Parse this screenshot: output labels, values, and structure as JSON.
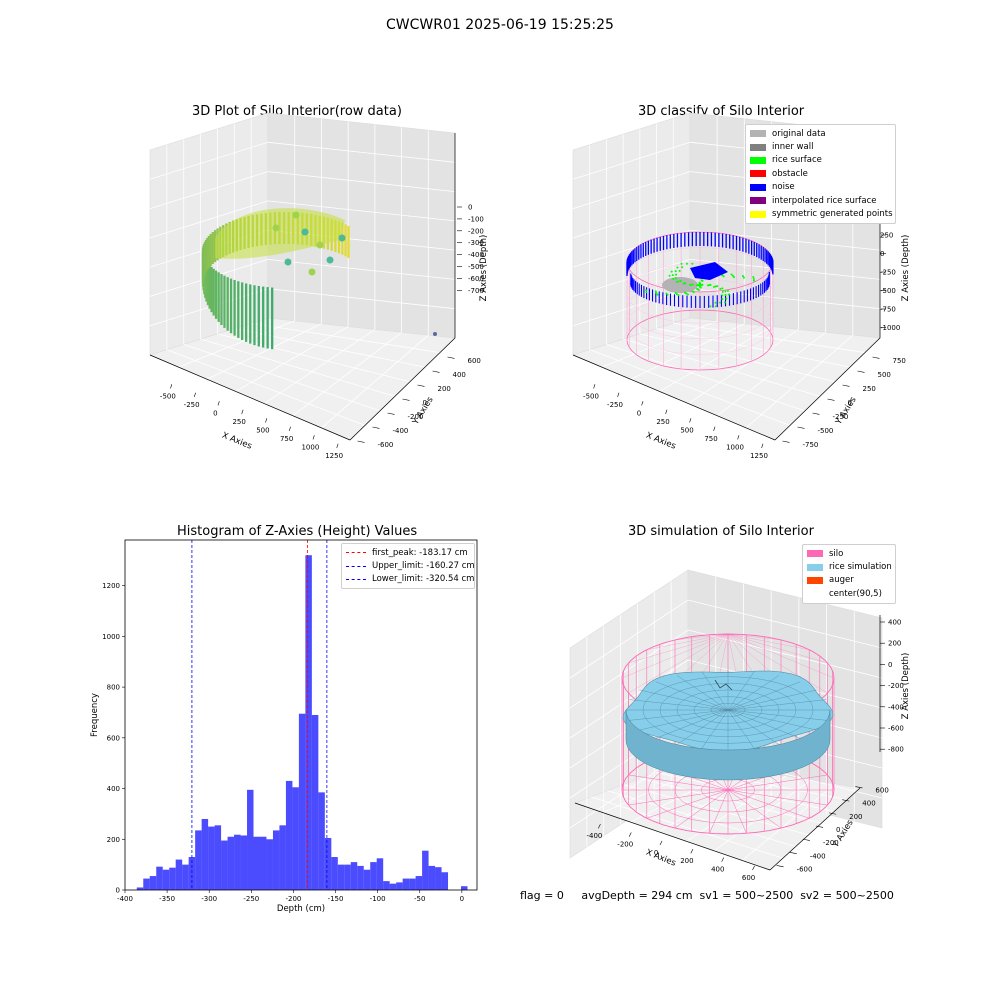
{
  "suptitle": "CWCWR01 2025-06-19 15:25:25",
  "footer": "flag = 0     avgDepth = 294 cm  sv1 = 500~2500  sv2 = 500~2500",
  "chart_data": [
    {
      "type": "scatter",
      "title": "3D Plot of Silo Interior(row data)",
      "xlabel": "X Axies",
      "ylabel": "Y Axies",
      "zlabel": "Z Axies (Depth)",
      "x_ticks": [
        "-500",
        "-250",
        "0",
        "250",
        "500",
        "750",
        "1000",
        "1250"
      ],
      "y_ticks": [
        "-600",
        "-400",
        "-200",
        "0",
        "200",
        "400",
        "600"
      ],
      "z_ticks": [
        "0",
        "-100",
        "-200",
        "-300",
        "-400",
        "-500",
        "-600",
        "-700"
      ],
      "colormap": "viridis"
    },
    {
      "type": "scatter",
      "title": "3D classify of Silo Interior",
      "xlabel": "X Axies",
      "ylabel": "Y Axies",
      "zlabel": "Z Axies (Depth)",
      "x_ticks": [
        "-500",
        "-250",
        "0",
        "250",
        "500",
        "750",
        "1000",
        "1250"
      ],
      "y_ticks": [
        "-750",
        "-500",
        "-250",
        "0",
        "250",
        "500",
        "750"
      ],
      "z_ticks": [
        "250",
        "0",
        "-250",
        "-500",
        "-750",
        "-1000"
      ],
      "z_ticks_top": [
        "500",
        "250"
      ],
      "legend": [
        {
          "label": "original data",
          "color": "#b3b3b3"
        },
        {
          "label": "inner wall",
          "color": "#808080"
        },
        {
          "label": "rice surface",
          "color": "#00ff00"
        },
        {
          "label": "obstacle",
          "color": "#ff0000"
        },
        {
          "label": "noise",
          "color": "#0000ff"
        },
        {
          "label": "interpolated rice surface",
          "color": "#800080"
        },
        {
          "label": "symmetric generated points",
          "color": "#ffff00"
        }
      ]
    },
    {
      "type": "bar",
      "title": "Histogram of Z-Axies (Height) Values",
      "xlabel": "Depth (cm)",
      "ylabel": "Frequency",
      "xlim": [
        -400,
        18
      ],
      "ylim": [
        0,
        1380
      ],
      "x_ticks": [
        "-400",
        "-350",
        "-300",
        "-250",
        "-200",
        "-150",
        "-100",
        "-50",
        "0"
      ],
      "y_ticks": [
        "0",
        "200",
        "400",
        "600",
        "800",
        "1000",
        "1200"
      ],
      "bin_width": 7.7,
      "bins": [
        -386,
        -378.3,
        -370.6,
        -362.9,
        -355.2,
        -347.5,
        -339.8,
        -332.1,
        -324.4,
        -316.7,
        -309,
        -301.3,
        -293.6,
        -285.9,
        -278.2,
        -270.5,
        -262.8,
        -255.1,
        -247.4,
        -239.7,
        -232,
        -224.3,
        -216.6,
        -208.9,
        -201.2,
        -193.5,
        -185.8,
        -178.1,
        -170.4,
        -162.7,
        -155,
        -147.3,
        -139.6,
        -131.9,
        -124.2,
        -116.5,
        -108.8,
        -101.1,
        -93.4,
        -85.7,
        -78,
        -70.3,
        -62.6,
        -54.9,
        -47.2,
        -39.5,
        -31.8,
        -24.1,
        -16.4,
        -8.7,
        -1
      ],
      "values": [
        10,
        45,
        55,
        92,
        80,
        88,
        120,
        100,
        130,
        235,
        280,
        250,
        255,
        195,
        210,
        218,
        215,
        395,
        210,
        210,
        200,
        235,
        255,
        430,
        405,
        695,
        1320,
        690,
        385,
        205,
        130,
        100,
        100,
        110,
        95,
        80,
        110,
        125,
        35,
        25,
        30,
        45,
        45,
        55,
        155,
        95,
        90,
        70,
        0,
        0,
        15
      ],
      "color": "#0000ff",
      "lines": [
        {
          "label": "first_peak: -183.17 cm",
          "x": -183.17,
          "color": "#ff0000"
        },
        {
          "label": "Upper_limit: -160.27 cm",
          "x": -160.27,
          "color": "#0000ff"
        },
        {
          "label": "Lower_limit: -320.54 cm",
          "x": -320.54,
          "color": "#0000ff"
        }
      ]
    },
    {
      "type": "surface",
      "title": "3D simulation of Silo Interior",
      "xlabel": "X Axies",
      "ylabel": "Y Axies",
      "zlabel": "Z Axies (Depth)",
      "x_ticks": [
        "-400",
        "-200",
        "0",
        "200",
        "400",
        "600"
      ],
      "y_ticks": [
        "-600",
        "-400",
        "-200",
        "0",
        "200",
        "400",
        "600"
      ],
      "z_ticks": [
        "400",
        "200",
        "0",
        "-200",
        "-400",
        "-600",
        "-800"
      ],
      "legend": [
        {
          "label": "silo",
          "color": "#ff69b4"
        },
        {
          "label": "rice simulation",
          "color": "#87ceeb"
        },
        {
          "label": "auger",
          "color": "#ff4500"
        },
        {
          "label": "center(90,5)",
          "color": ""
        }
      ]
    }
  ]
}
